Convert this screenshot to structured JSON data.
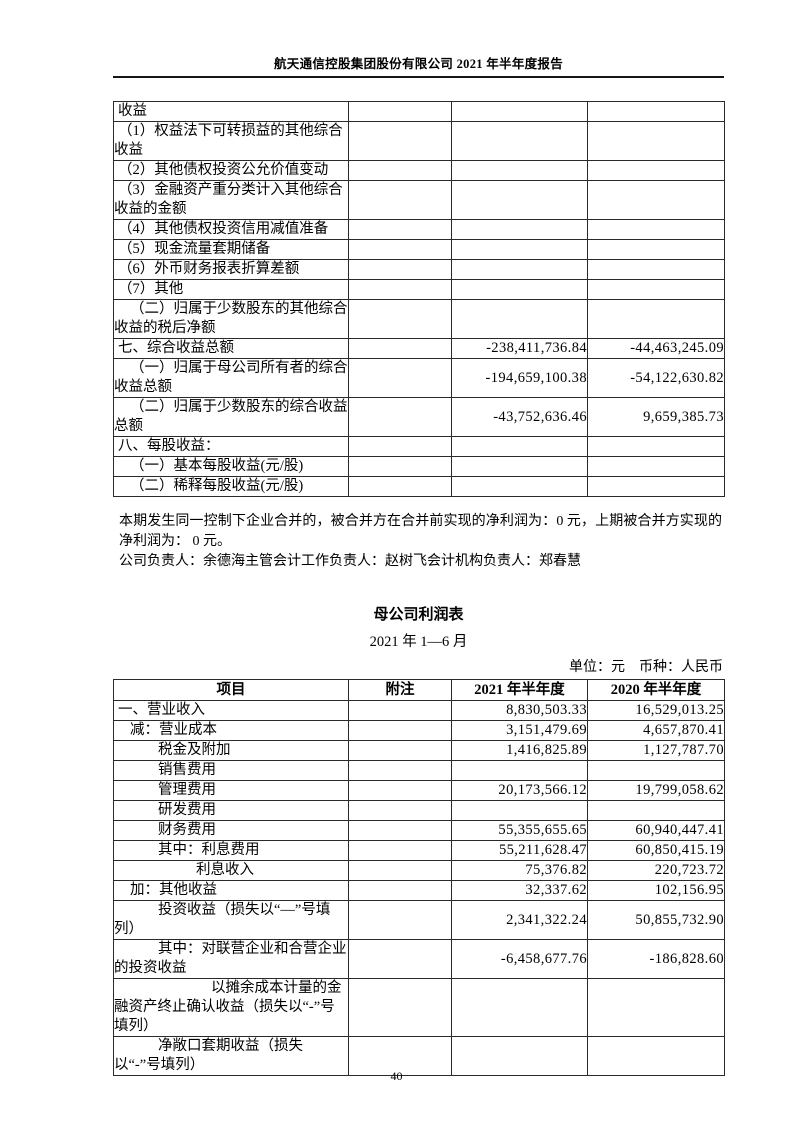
{
  "header": {
    "title": "航天通信控股集团股份有限公司 2021 年半年度报告"
  },
  "comprehensive_income_table": {
    "rows": [
      {
        "label": "收益",
        "note": "",
        "v2021": "",
        "v2020": "",
        "indent": 0
      },
      {
        "label": "（1）权益法下可转损益的其他综合收益",
        "note": "",
        "v2021": "",
        "v2020": "",
        "indent": 0
      },
      {
        "label": "（2）其他债权投资公允价值变动",
        "note": "",
        "v2021": "",
        "v2020": "",
        "indent": 0
      },
      {
        "label": "（3）金融资产重分类计入其他综合收益的金额",
        "note": "",
        "v2021": "",
        "v2020": "",
        "indent": 0
      },
      {
        "label": "（4）其他债权投资信用减值准备",
        "note": "",
        "v2021": "",
        "v2020": "",
        "indent": 0
      },
      {
        "label": "（5）现金流量套期储备",
        "note": "",
        "v2021": "",
        "v2020": "",
        "indent": 0
      },
      {
        "label": "（6）外币财务报表折算差额",
        "note": "",
        "v2021": "",
        "v2020": "",
        "indent": 0
      },
      {
        "label": "（7）其他",
        "note": "",
        "v2021": "",
        "v2020": "",
        "indent": 0
      },
      {
        "label": "（二）归属于少数股东的其他综合收益的税后净额",
        "note": "",
        "v2021": "",
        "v2020": "",
        "indent": 1
      },
      {
        "label": "七、综合收益总额",
        "note": "",
        "v2021": "-238,411,736.84",
        "v2020": "-44,463,245.09",
        "indent": 0
      },
      {
        "label": "（一）归属于母公司所有者的综合收益总额",
        "note": "",
        "v2021": "-194,659,100.38",
        "v2020": "-54,122,630.82",
        "indent": 1
      },
      {
        "label": "（二）归属于少数股东的综合收益总额",
        "note": "",
        "v2021": "-43,752,636.46",
        "v2020": "9,659,385.73",
        "indent": 1
      },
      {
        "label": "八、每股收益：",
        "note": "",
        "v2021": "",
        "v2020": "",
        "indent": 0
      },
      {
        "label": "（一）基本每股收益(元/股)",
        "note": "",
        "v2021": "",
        "v2020": "",
        "indent": 1
      },
      {
        "label": "（二）稀释每股收益(元/股)",
        "note": "",
        "v2021": "",
        "v2020": "",
        "indent": 1
      }
    ]
  },
  "notes": {
    "merger_note": "本期发生同一控制下企业合并的，被合并方在合并前实现的净利润为：0 元，上期被合并方实现的净利润为： 0 元。",
    "officers": "公司负责人：余德海主管会计工作负责人：赵树飞会计机构负责人：郑春慧"
  },
  "income_statement": {
    "title": "母公司利润表",
    "period": "2021 年 1—6 月",
    "unit_note": "单位：元　币种：人民币",
    "headers": [
      "项目",
      "附注",
      "2021 年半年度",
      "2020 年半年度"
    ],
    "rows": [
      {
        "label": "一、营业收入",
        "note": "",
        "v2021": "8,830,503.33",
        "v2020": "16,529,013.25",
        "indent": 0
      },
      {
        "label": "减：营业成本",
        "note": "",
        "v2021": "3,151,479.69",
        "v2020": "4,657,870.41",
        "indent": 1
      },
      {
        "label": "税金及附加",
        "note": "",
        "v2021": "1,416,825.89",
        "v2020": "1,127,787.70",
        "indent": 2
      },
      {
        "label": "销售费用",
        "note": "",
        "v2021": "",
        "v2020": "",
        "indent": 2
      },
      {
        "label": "管理费用",
        "note": "",
        "v2021": "20,173,566.12",
        "v2020": "19,799,058.62",
        "indent": 2
      },
      {
        "label": "研发费用",
        "note": "",
        "v2021": "",
        "v2020": "",
        "indent": 2
      },
      {
        "label": "财务费用",
        "note": "",
        "v2021": "55,355,655.65",
        "v2020": "60,940,447.41",
        "indent": 2
      },
      {
        "label": "其中：利息费用",
        "note": "",
        "v2021": "55,211,628.47",
        "v2020": "60,850,415.19",
        "indent": 2
      },
      {
        "label": "利息收入",
        "note": "",
        "v2021": "75,376.82",
        "v2020": "220,723.72",
        "indent": 3
      },
      {
        "label": "加：其他收益",
        "note": "",
        "v2021": "32,337.62",
        "v2020": "102,156.95",
        "indent": 1
      },
      {
        "label": "投资收益（损失以“—”号填列）",
        "note": "",
        "v2021": "2,341,322.24",
        "v2020": "50,855,732.90",
        "indent": 2
      },
      {
        "label": "其中：对联营企业和合营企业的投资收益",
        "note": "",
        "v2021": "-6,458,677.76",
        "v2020": "-186,828.60",
        "indent": 2
      },
      {
        "label": "以摊余成本计量的金融资产终止确认收益（损失以“-”号填列）",
        "note": "",
        "v2021": "",
        "v2020": "",
        "indent": 4
      },
      {
        "label": "净敞口套期收益（损失以“-”号填列）",
        "note": "",
        "v2021": "",
        "v2020": "",
        "indent": 2
      }
    ]
  },
  "footer": {
    "page_number": "40"
  }
}
